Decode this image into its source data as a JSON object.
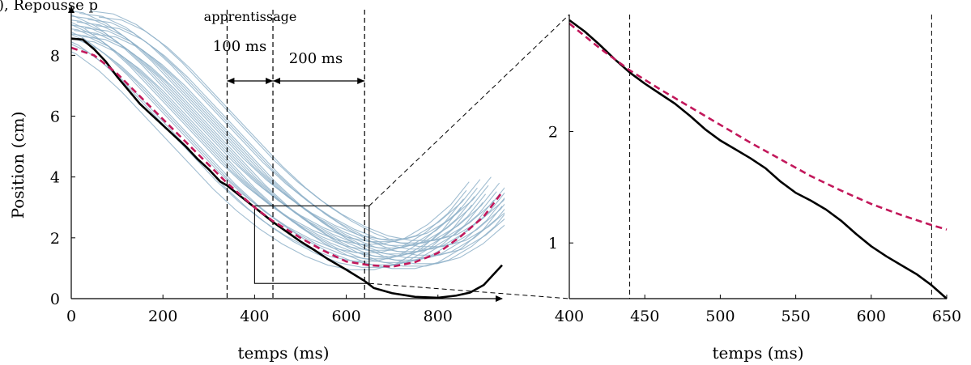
{
  "figure": {
    "header_fragment": "), Repousse p"
  },
  "chart_data": [
    {
      "type": "line",
      "xlabel": "temps (ms)",
      "ylabel": "Position (cm)",
      "xlim": [
        0,
        940
      ],
      "ylim": [
        0,
        9.5
      ],
      "x_ticks": [
        0,
        200,
        400,
        600,
        800
      ],
      "y_ticks": [
        0,
        2,
        4,
        6,
        8
      ],
      "grid": false,
      "legend": "none",
      "annotations": {
        "learning_label": "apprentissage",
        "interval_1_label": "100 ms",
        "interval_2_label": "200 ms"
      },
      "vertical_markers_ms": [
        340,
        440,
        640
      ],
      "interval_1_ms": [
        340,
        440
      ],
      "interval_2_ms": [
        440,
        640
      ],
      "zoom_box": {
        "x": [
          400,
          650
        ],
        "y": [
          0.5,
          3.05
        ]
      },
      "colors": {
        "measured": "#000000",
        "prediction": "#c2185b",
        "samples": "#8fb2c9"
      },
      "series": [
        {
          "role": "measured",
          "x": [
            0,
            25,
            50,
            75,
            100,
            125,
            150,
            175,
            200,
            225,
            250,
            275,
            300,
            325,
            340,
            375,
            400,
            440,
            470,
            500,
            530,
            560,
            600,
            640,
            660,
            700,
            750,
            800,
            840,
            870,
            900,
            940
          ],
          "y": [
            8.55,
            8.52,
            8.2,
            7.8,
            7.3,
            6.85,
            6.4,
            6.05,
            5.7,
            5.35,
            5.0,
            4.6,
            4.25,
            3.85,
            3.72,
            3.3,
            3.0,
            2.52,
            2.2,
            1.88,
            1.6,
            1.3,
            0.95,
            0.58,
            0.35,
            0.18,
            0.06,
            0.03,
            0.1,
            0.2,
            0.45,
            1.1
          ]
        },
        {
          "role": "prediction",
          "x": [
            0,
            50,
            100,
            150,
            200,
            250,
            300,
            340,
            400,
            440,
            500,
            550,
            600,
            650,
            700,
            750,
            800,
            850,
            900,
            940
          ],
          "y": [
            8.25,
            8.0,
            7.4,
            6.65,
            5.9,
            5.15,
            4.4,
            3.8,
            3.0,
            2.55,
            2.0,
            1.58,
            1.22,
            1.1,
            1.05,
            1.2,
            1.5,
            2.05,
            2.7,
            3.5
          ]
        }
      ],
      "sample_family": {
        "count": 26,
        "base_x": [
          0,
          50,
          100,
          150,
          200,
          250,
          300,
          350,
          400,
          450,
          500,
          550,
          600,
          650,
          700,
          750,
          800,
          850,
          900,
          940
        ],
        "base_y": [
          9.0,
          8.9,
          8.55,
          8.0,
          7.3,
          6.5,
          5.7,
          4.9,
          4.1,
          3.4,
          2.8,
          2.3,
          1.9,
          1.6,
          1.45,
          1.45,
          1.65,
          2.1,
          2.75,
          3.5
        ],
        "x_shift_range": [
          -90,
          60
        ],
        "y_shift_range": [
          -0.5,
          0.5
        ]
      }
    },
    {
      "type": "line",
      "xlabel": "temps (ms)",
      "ylabel": "",
      "xlim": [
        400,
        650
      ],
      "ylim": [
        0.5,
        3.05
      ],
      "x_ticks": [
        400,
        450,
        500,
        550,
        600,
        650
      ],
      "y_ticks": [
        1,
        2
      ],
      "grid": false,
      "legend": "none",
      "vertical_markers_ms": [
        440,
        640
      ],
      "series": [
        {
          "role": "measured",
          "x": [
            400,
            410,
            420,
            430,
            440,
            450,
            460,
            470,
            480,
            490,
            500,
            510,
            520,
            530,
            540,
            550,
            560,
            570,
            580,
            590,
            600,
            610,
            620,
            630,
            640,
            650
          ],
          "y": [
            3.0,
            2.9,
            2.78,
            2.65,
            2.53,
            2.43,
            2.34,
            2.25,
            2.14,
            2.02,
            1.92,
            1.84,
            1.76,
            1.67,
            1.55,
            1.45,
            1.38,
            1.3,
            1.2,
            1.08,
            0.97,
            0.88,
            0.8,
            0.72,
            0.62,
            0.5
          ]
        },
        {
          "role": "prediction",
          "x": [
            400,
            420,
            440,
            460,
            480,
            500,
            520,
            540,
            560,
            580,
            600,
            620,
            640,
            650
          ],
          "y": [
            2.97,
            2.75,
            2.55,
            2.38,
            2.22,
            2.06,
            1.9,
            1.75,
            1.6,
            1.47,
            1.35,
            1.25,
            1.16,
            1.12
          ]
        }
      ]
    }
  ]
}
